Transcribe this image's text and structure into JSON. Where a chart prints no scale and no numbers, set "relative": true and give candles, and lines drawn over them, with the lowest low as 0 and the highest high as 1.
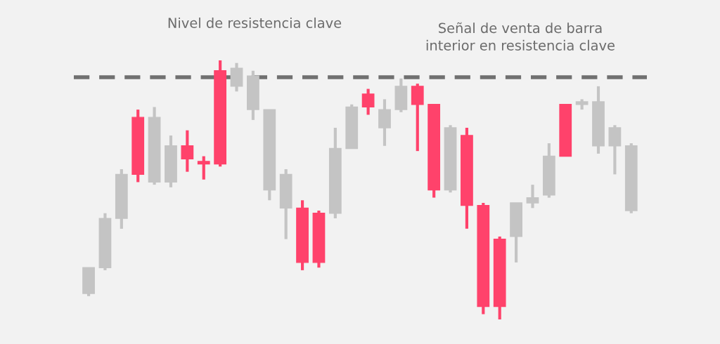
{
  "chart_data": {
    "type": "candlestick",
    "relative": true,
    "categories": [
      null,
      null,
      null,
      null,
      null,
      null,
      null,
      null,
      null,
      null,
      null,
      null,
      null,
      null,
      null,
      null,
      null,
      null,
      null,
      null,
      null,
      null,
      null,
      null,
      null,
      null,
      null,
      null,
      null,
      null,
      null,
      null,
      null,
      null
    ],
    "ohlc": [
      [
        0.1,
        0.2,
        0.09,
        0.2
      ],
      [
        0.2,
        0.41,
        0.19,
        0.39
      ],
      [
        0.39,
        0.58,
        0.35,
        0.56
      ],
      [
        0.78,
        0.81,
        0.53,
        0.56
      ],
      [
        0.53,
        0.82,
        0.52,
        0.78
      ],
      [
        0.53,
        0.71,
        0.51,
        0.67
      ],
      [
        0.67,
        0.73,
        0.57,
        0.62
      ],
      [
        0.61,
        0.63,
        0.54,
        0.6
      ],
      [
        0.96,
        1.0,
        0.59,
        0.6
      ],
      [
        0.9,
        0.99,
        0.88,
        0.97
      ],
      [
        0.81,
        0.96,
        0.77,
        0.94
      ],
      [
        0.5,
        0.81,
        0.46,
        0.81
      ],
      [
        0.43,
        0.58,
        0.31,
        0.56
      ],
      [
        0.43,
        0.46,
        0.19,
        0.22
      ],
      [
        0.41,
        0.42,
        0.2,
        0.22
      ],
      [
        0.41,
        0.74,
        0.39,
        0.66
      ],
      [
        0.66,
        0.83,
        0.66,
        0.82
      ],
      [
        0.87,
        0.89,
        0.79,
        0.82
      ],
      [
        0.74,
        0.85,
        0.67,
        0.81
      ],
      [
        0.81,
        0.93,
        0.8,
        0.9
      ],
      [
        0.9,
        0.91,
        0.65,
        0.83
      ],
      [
        0.83,
        0.83,
        0.47,
        0.5
      ],
      [
        0.5,
        0.75,
        0.49,
        0.74
      ],
      [
        0.71,
        0.74,
        0.35,
        0.44
      ],
      [
        0.44,
        0.45,
        0.02,
        0.05
      ],
      [
        0.31,
        0.32,
        0.0,
        0.05
      ],
      [
        0.32,
        0.45,
        0.22,
        0.45
      ],
      [
        0.45,
        0.52,
        0.43,
        0.47
      ],
      [
        0.48,
        0.68,
        0.47,
        0.63
      ],
      [
        0.83,
        0.83,
        0.63,
        0.63
      ],
      [
        0.83,
        0.85,
        0.81,
        0.84
      ],
      [
        0.67,
        0.9,
        0.64,
        0.84
      ],
      [
        0.67,
        0.75,
        0.56,
        0.74
      ],
      [
        0.42,
        0.68,
        0.41,
        0.67
      ]
    ],
    "colors": [
      "#c4c4c4",
      "#c4c4c4",
      "#c4c4c4",
      "#ff426b",
      "#c4c4c4",
      "#c4c4c4",
      "#ff426b",
      "#ff426b",
      "#ff426b",
      "#c4c4c4",
      "#c4c4c4",
      "#c4c4c4",
      "#c4c4c4",
      "#ff426b",
      "#ff426b",
      "#c4c4c4",
      "#c4c4c4",
      "#ff426b",
      "#c4c4c4",
      "#c4c4c4",
      "#ff426b",
      "#ff426b",
      "#c4c4c4",
      "#ff426b",
      "#ff426b",
      "#ff426b",
      "#c4c4c4",
      "#c4c4c4",
      "#c4c4c4",
      "#ff426b",
      "#c4c4c4",
      "#c4c4c4",
      "#c4c4c4",
      "#c4c4c4"
    ],
    "ref_lines": [
      {
        "axis": "y",
        "value": 0.935,
        "color": "#707070",
        "line_style": "dashed"
      }
    ],
    "annotations": [
      "Nivel de resistencia clave",
      "Señal de venta de barra\ninterior en resistencia clave"
    ]
  }
}
